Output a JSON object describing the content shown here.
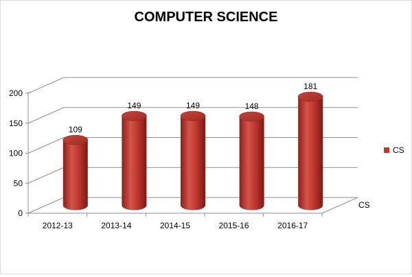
{
  "chart_data": {
    "type": "bar",
    "title": "COMPUTER SCIENCE",
    "categories": [
      "2012-13",
      "2013-14",
      "2014-15",
      "2015-16",
      "2016-17"
    ],
    "series": [
      {
        "name": "CS",
        "values": [
          109,
          149,
          149,
          148,
          181
        ],
        "color": "#c0392b"
      }
    ],
    "depth_axis_label": "CS",
    "ylim": [
      0,
      200
    ],
    "yticks": [
      0,
      50,
      100,
      150,
      200
    ],
    "grid": true,
    "legend": "right",
    "style": "3d-cylinder"
  }
}
